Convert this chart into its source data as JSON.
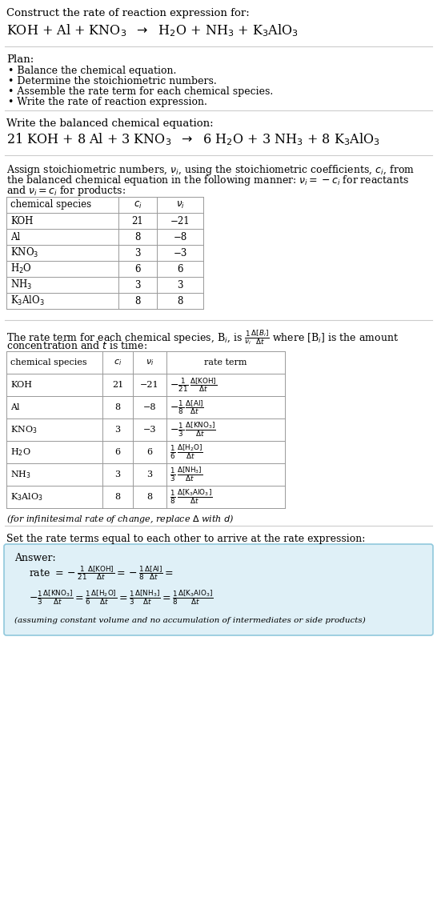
{
  "bg_color": "#ffffff",
  "table_border_color": "#999999",
  "answer_box_color": "#dff0f7",
  "answer_box_border": "#90c8dc",
  "species1": [
    "KOH",
    "Al",
    "KNO$_3$",
    "H$_2$O",
    "NH$_3$",
    "K$_3$AlO$_3$"
  ],
  "ci_vals": [
    "21",
    "8",
    "3",
    "6",
    "3",
    "8"
  ],
  "nu_vals": [
    "−21",
    "−8",
    "−3",
    "6",
    "3",
    "8"
  ]
}
